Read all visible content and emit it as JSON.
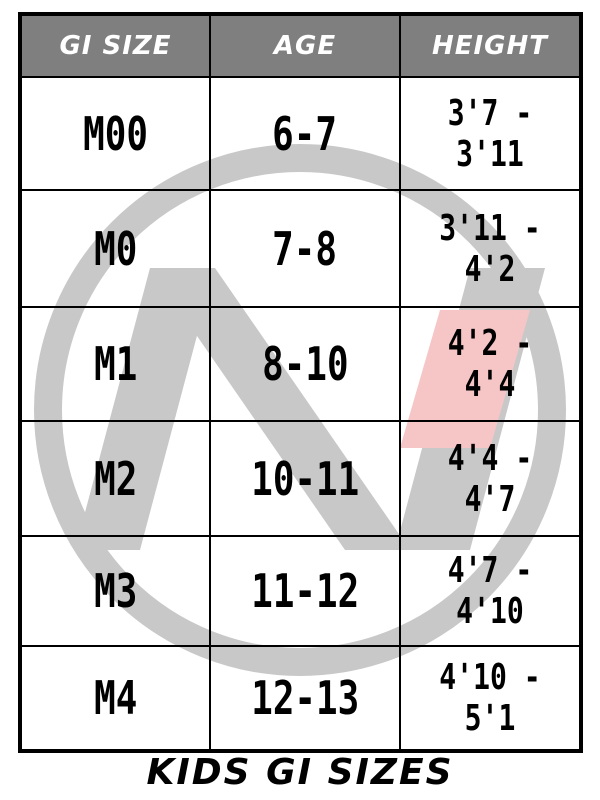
{
  "table": {
    "headers": [
      "GI SIZE",
      "AGE",
      "HEIGHT"
    ],
    "rows": [
      {
        "size": "M00",
        "age": "6-7",
        "height": "3'7 - 3'11"
      },
      {
        "size": "M0",
        "age": "7-8",
        "height": "3'11 - 4'2"
      },
      {
        "size": "M1",
        "age": "8-10",
        "height": "4'2 - 4'4"
      },
      {
        "size": "M2",
        "age": "10-11",
        "height": "4'4 - 4'7"
      },
      {
        "size": "M3",
        "age": "11-12",
        "height": "4'7 - 4'10"
      },
      {
        "size": "M4",
        "age": "12-13",
        "height": "4'10 - 5'1"
      }
    ]
  },
  "footer": {
    "title": "KIDS GI SIZES"
  },
  "colors": {
    "header_bg": "#7f7f7f",
    "watermark_gray": "#c8c8c8",
    "watermark_accent": "#f6c6c6"
  },
  "watermark": {
    "icon": "circle-n-logo"
  }
}
